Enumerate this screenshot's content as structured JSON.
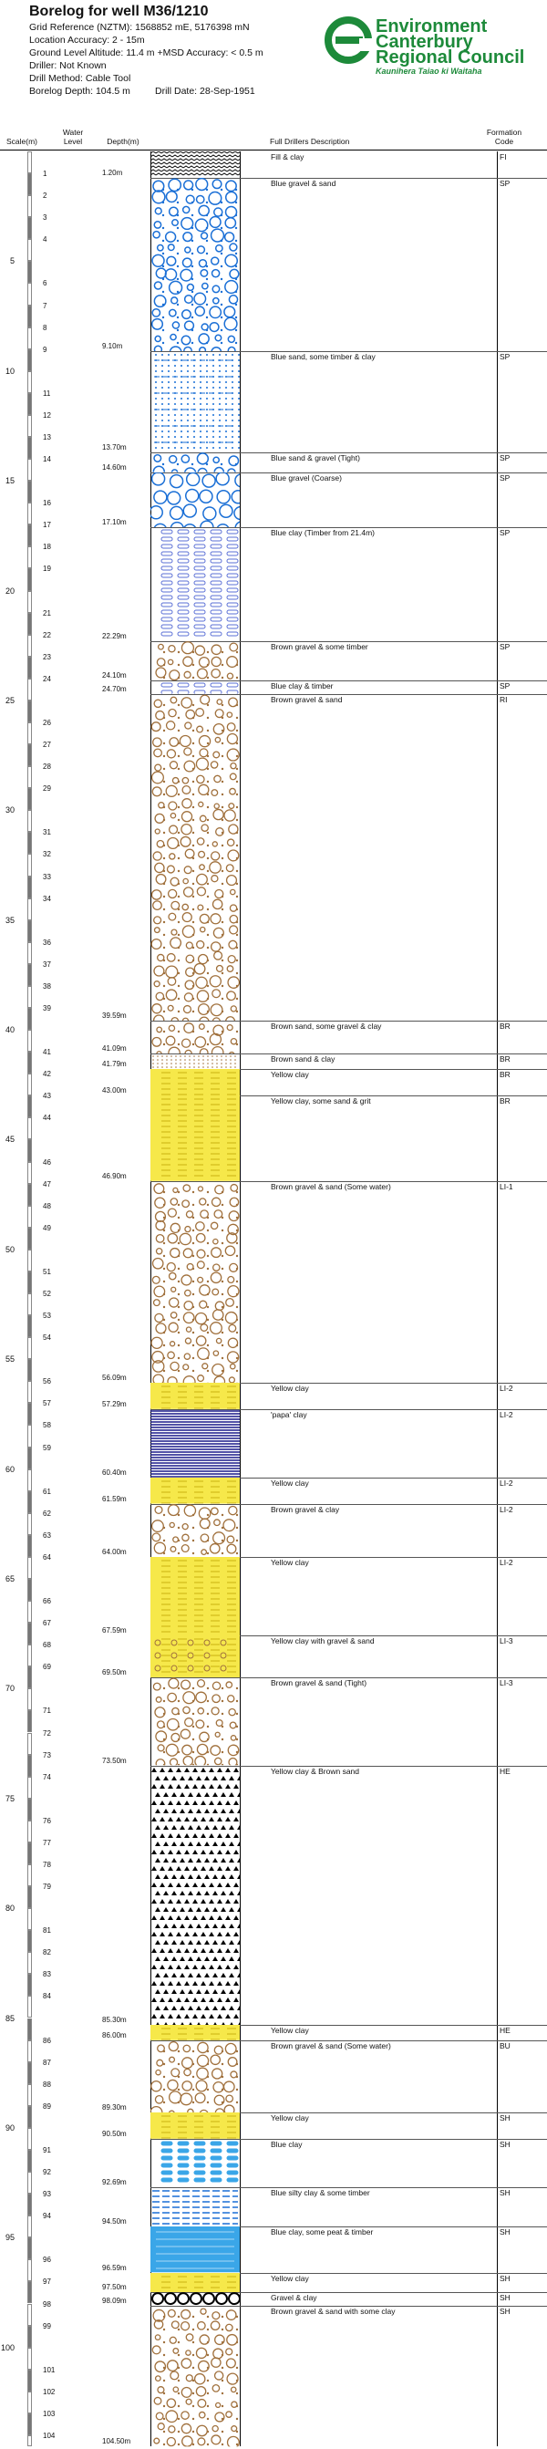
{
  "header": {
    "title": "Borelog for well M36/1210",
    "grid_reference": "Grid Reference (NZTM):  1568852 mE, 5176398 mN",
    "location_accuracy": "Location Accuracy:  2 - 15m",
    "ground_level": "Ground Level Altitude:  11.4 m +MSD Accuracy: < 0.5 m",
    "driller": "Driller:  Not Known",
    "drill_method": "Drill Method:  Cable Tool",
    "borelog_depth": "Borelog Depth:  104.5 m",
    "drill_date": "Drill Date:  28-Sep-1951"
  },
  "logo": {
    "line1": "Environment",
    "line2": "Canterbury",
    "line3": "Regional Council",
    "tagline": "Kaunihera Taiao ki Waitaha",
    "brand_color": "#1d8a3a"
  },
  "columns": {
    "scale": "Scale(m)",
    "water_level": "Water Level",
    "depth": "Depth(m)",
    "description": "Full Drillers Description",
    "formation": "Formation Code"
  },
  "scale": {
    "major_labels": [
      "5",
      "10",
      "15",
      "20",
      "25",
      "30",
      "35",
      "40",
      "45",
      "50",
      "55",
      "60",
      "65",
      "70",
      "75",
      "80",
      "85",
      "90",
      "95",
      "100"
    ],
    "max_depth": 104.5
  },
  "layers": [
    {
      "top": 0,
      "bottom": 1.2,
      "depth_label": "1.20m",
      "desc": "Fill & clay",
      "code": "FI",
      "pattern": "fill"
    },
    {
      "top": 1.2,
      "bottom": 9.1,
      "depth_label": "9.10m",
      "desc": "Blue gravel & sand",
      "code": "SP",
      "pattern": "blue_gravel_sand"
    },
    {
      "top": 9.1,
      "bottom": 13.7,
      "depth_label": "13.70m",
      "desc": "Blue sand, some timber & clay",
      "code": "SP",
      "pattern": "blue_sand"
    },
    {
      "top": 13.7,
      "bottom": 14.6,
      "depth_label": "14.60m",
      "desc": "Blue sand & gravel (Tight)",
      "code": "SP",
      "pattern": "blue_gravel_sand"
    },
    {
      "top": 14.6,
      "bottom": 17.1,
      "depth_label": "17.10m",
      "desc": "Blue gravel (Coarse)",
      "code": "SP",
      "pattern": "blue_gravel"
    },
    {
      "top": 17.1,
      "bottom": 22.29,
      "depth_label": "22.29m",
      "desc": "Blue clay (Timber from 21.4m)",
      "code": "SP",
      "pattern": "blue_clay"
    },
    {
      "top": 22.29,
      "bottom": 24.1,
      "depth_label": "24.10m",
      "desc": "Brown gravel & some timber",
      "code": "SP",
      "pattern": "brown_gravel"
    },
    {
      "top": 24.1,
      "bottom": 24.7,
      "depth_label": "24.70m",
      "desc": "Blue clay & timber",
      "code": "SP",
      "pattern": "blue_clay"
    },
    {
      "top": 24.7,
      "bottom": 39.59,
      "depth_label": "39.59m",
      "desc": "Brown gravel & sand",
      "code": "RI",
      "pattern": "brown_gravel_sand"
    },
    {
      "top": 39.59,
      "bottom": 41.09,
      "depth_label": "41.09m",
      "desc": "Brown sand, some gravel & clay",
      "code": "BR",
      "pattern": "brown_sand_gravel"
    },
    {
      "top": 41.09,
      "bottom": 41.79,
      "depth_label": "41.79m",
      "desc": "Brown sand & clay",
      "code": "BR",
      "pattern": "brown_sand"
    },
    {
      "top": 41.79,
      "bottom": 43.0,
      "depth_label": "43.00m",
      "desc": "Yellow clay",
      "code": "BR",
      "pattern": "yellow_clay"
    },
    {
      "top": 43.0,
      "bottom": 46.9,
      "depth_label": "46.90m",
      "desc": "Yellow clay, some sand & grit",
      "code": "BR",
      "pattern": "yellow_clay_sand"
    },
    {
      "top": 46.9,
      "bottom": 56.09,
      "depth_label": "56.09m",
      "desc": "Brown gravel & sand (Some water)",
      "code": "LI-1",
      "pattern": "brown_gravel_sand"
    },
    {
      "top": 56.09,
      "bottom": 57.29,
      "depth_label": "57.29m",
      "desc": "Yellow clay",
      "code": "LI-2",
      "pattern": "yellow_clay"
    },
    {
      "top": 57.29,
      "bottom": 60.4,
      "depth_label": "60.40m",
      "desc": "'papa' clay",
      "code": "LI-2",
      "pattern": "papa"
    },
    {
      "top": 60.4,
      "bottom": 61.59,
      "depth_label": "61.59m",
      "desc": "Yellow clay",
      "code": "LI-2",
      "pattern": "yellow_clay"
    },
    {
      "top": 61.59,
      "bottom": 64.0,
      "depth_label": "64.00m",
      "desc": "Brown gravel & clay",
      "code": "LI-2",
      "pattern": "brown_gravel"
    },
    {
      "top": 64.0,
      "bottom": 67.59,
      "depth_label": "67.59m",
      "desc": "Yellow clay",
      "code": "LI-2",
      "pattern": "yellow_clay"
    },
    {
      "top": 67.59,
      "bottom": 69.5,
      "depth_label": "69.50m",
      "desc": "Yellow clay with gravel & sand",
      "code": "LI-3",
      "pattern": "yellow_clay_gravel"
    },
    {
      "top": 69.5,
      "bottom": 73.5,
      "depth_label": "73.50m",
      "desc": "Brown gravel & sand (Tight)",
      "code": "LI-3",
      "pattern": "brown_gravel_sand"
    },
    {
      "top": 73.5,
      "bottom": 85.3,
      "depth_label": "85.30m",
      "desc": "Yellow clay & Brown sand",
      "code": "HE",
      "pattern": "black_gravel"
    },
    {
      "top": 85.3,
      "bottom": 86.0,
      "depth_label": "86.00m",
      "desc": "Yellow clay",
      "code": "HE",
      "pattern": "yellow_clay"
    },
    {
      "top": 86.0,
      "bottom": 89.3,
      "depth_label": "89.30m",
      "desc": "Brown gravel & sand (Some water)",
      "code": "BU",
      "pattern": "brown_gravel_sand"
    },
    {
      "top": 89.3,
      "bottom": 90.5,
      "depth_label": "90.50m",
      "desc": "Yellow clay",
      "code": "SH",
      "pattern": "yellow_clay"
    },
    {
      "top": 90.5,
      "bottom": 92.69,
      "depth_label": "92.69m",
      "desc": "Blue clay",
      "code": "SH",
      "pattern": "blue_clay_dash"
    },
    {
      "top": 92.69,
      "bottom": 94.5,
      "depth_label": "94.50m",
      "desc": "Blue silty clay & some timber",
      "code": "SH",
      "pattern": "blue_silt"
    },
    {
      "top": 94.5,
      "bottom": 96.59,
      "depth_label": "96.59m",
      "desc": "Blue clay, some peat & timber",
      "code": "SH",
      "pattern": "blue_peat"
    },
    {
      "top": 96.59,
      "bottom": 97.5,
      "depth_label": "97.50m",
      "desc": "Yellow clay",
      "code": "SH",
      "pattern": "yellow_clay"
    },
    {
      "top": 97.5,
      "bottom": 98.09,
      "depth_label": "98.09m",
      "desc": "Gravel & clay",
      "code": "SH",
      "pattern": "black_rings"
    },
    {
      "top": 98.09,
      "bottom": 104.5,
      "depth_label": "104.50m",
      "desc": "Brown gravel & sand with some clay",
      "code": "SH",
      "pattern": "brown_gravel_sand"
    }
  ],
  "pattern_colors": {
    "blue": "#1a6fd6",
    "brown": "#a0703c",
    "yellow": "#f6e84a",
    "navy": "#1a1a8a",
    "black": "#000000",
    "cyan": "#3aa6e8"
  }
}
